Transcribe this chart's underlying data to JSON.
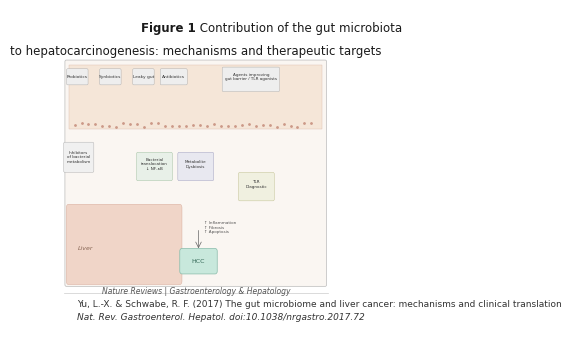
{
  "title_bold": "Figure 1",
  "title_normal": " Contribution of the gut microbiota",
  "title_line2": "to hepatocarcinogenesis: mechanisms and therapeutic targets",
  "journal_credit": "Nature Reviews | Gastroenterology & Hepatology",
  "citation_line1": "Yu, L.-X. & Schwabe, R. F. (2017) The gut microbiome and liver cancer: mechanisms and clinical translation",
  "citation_line2": "Nat. Rev. Gastroenterol. Hepatol. doi:10.1038/nrgastro.2017.72",
  "bg_color": "#ffffff",
  "diagram_bg": "#f5f0eb",
  "diagram_border": "#cccccc",
  "title_fontsize": 8.5,
  "citation_fontsize": 6.5,
  "journal_fontsize": 5.5
}
